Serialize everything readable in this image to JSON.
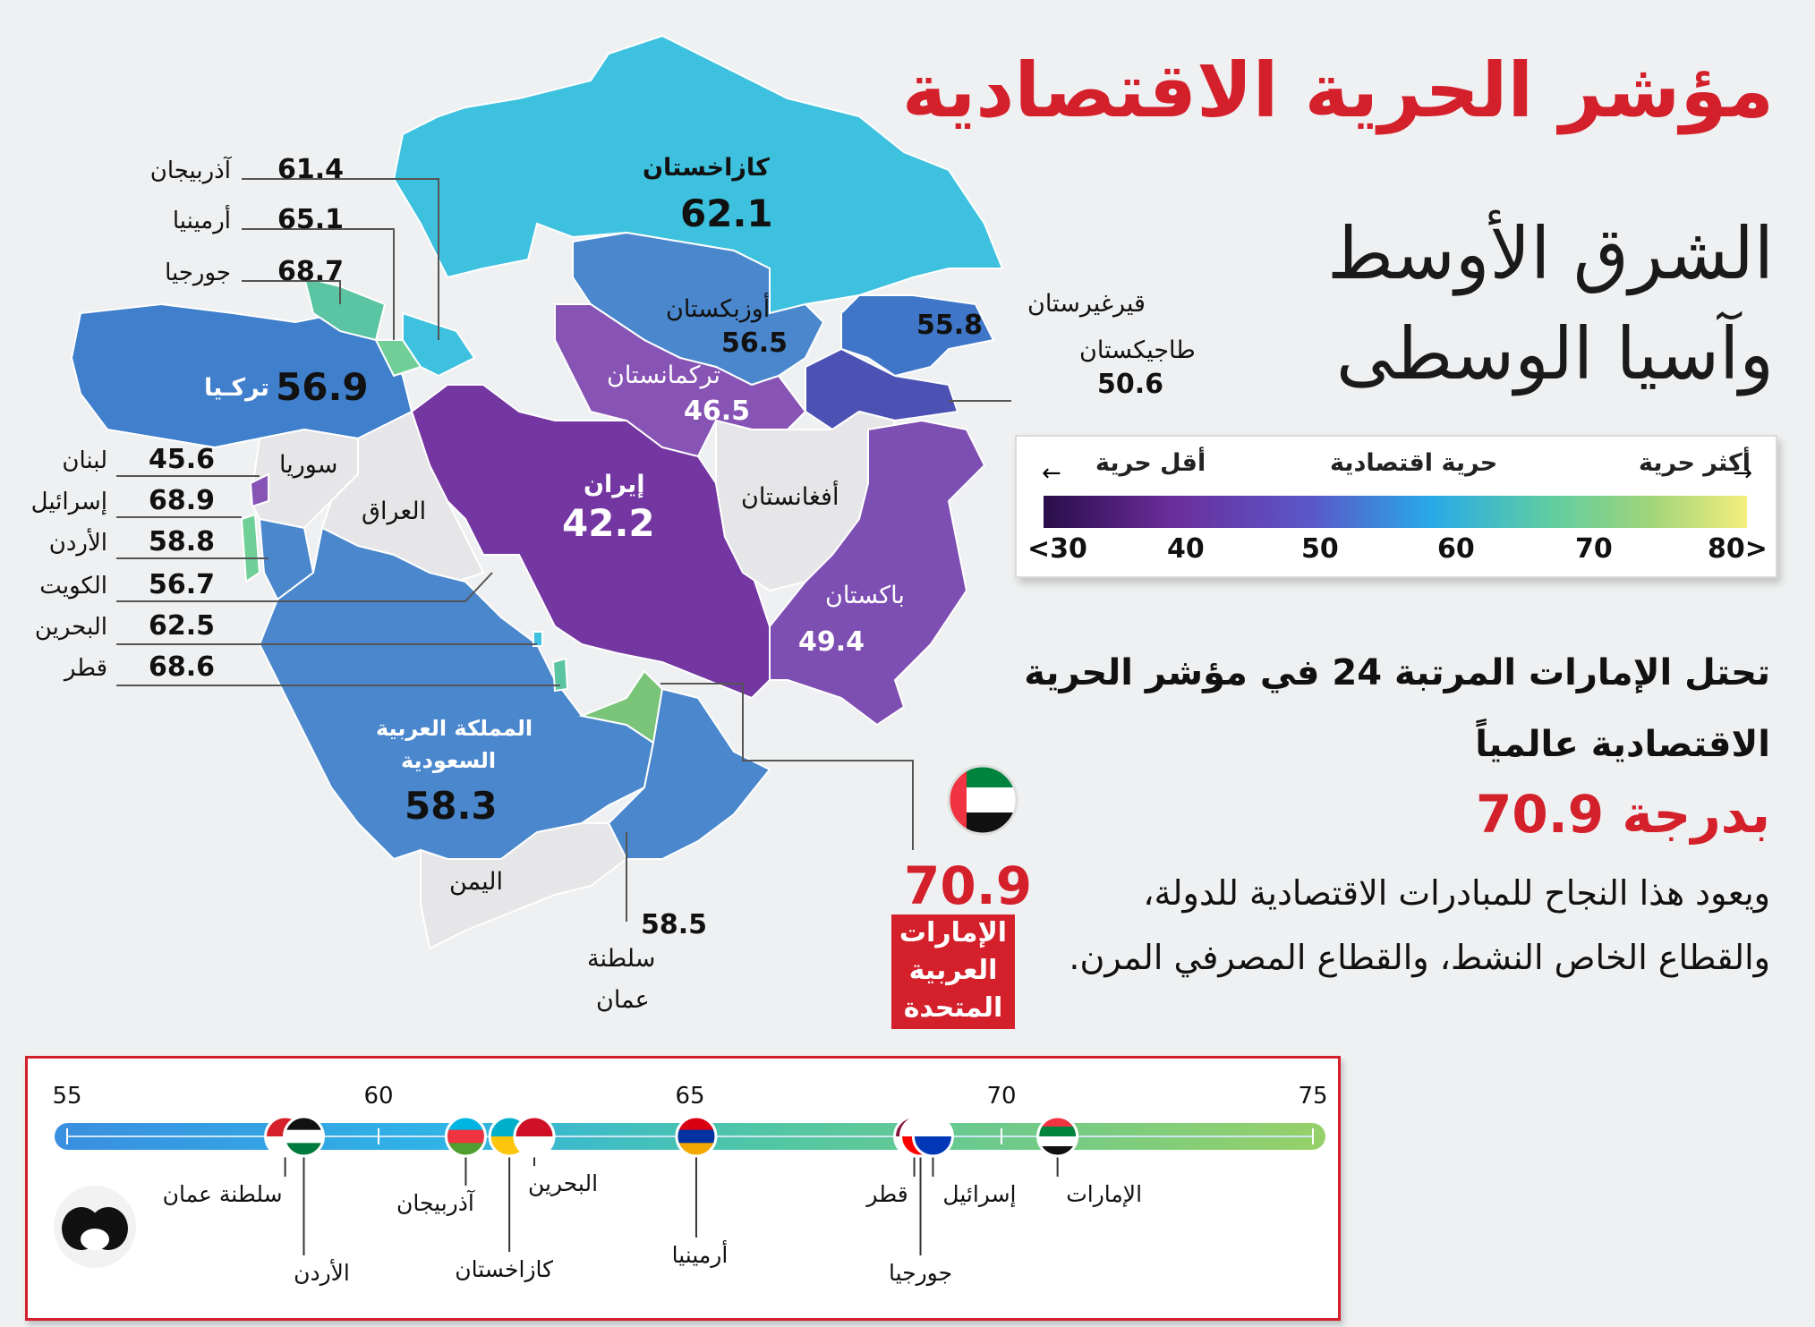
{
  "title": "مؤشر الحرية  الاقتصادية",
  "subtitle_line1": "الشرق الأوسط",
  "subtitle_line2": "وآسيا الوسطى",
  "legend": {
    "more_freedom": "أكثر حرية",
    "economic_freedom": "حرية اقتصادية",
    "less_freedom": "أقل حرية",
    "ticks": [
      "<30",
      "40",
      "50",
      "60",
      "70",
      "80>"
    ]
  },
  "headline": {
    "rank_line1": "تحتل الإمارات المرتبة 24 في مؤشر الحرية",
    "rank_line2": "الاقتصادية عالمياً",
    "score": "بدرجة 70.9",
    "reason_line1": "ويعود هذا النجاح للمبادرات الاقتصادية للدولة،",
    "reason_line2": "والقطاع الخاص النشط، والقطاع المصرفي المرن."
  },
  "map": {
    "kazakhstan": {
      "name": "كازاخستان",
      "value": "62.1"
    },
    "uzbekistan": {
      "name": "أوزبكستان",
      "value": "56.5"
    },
    "kyrgyzstan": {
      "name": "قيرغيرستان",
      "value": "55.8"
    },
    "tajikistan": {
      "name": "طاجيكستان",
      "value": "50.6"
    },
    "turkmenistan": {
      "name": "تركمانستان",
      "value": "46.5"
    },
    "turkey": {
      "name": "تركـيا",
      "value": "56.9"
    },
    "syria": {
      "name": "سوريا"
    },
    "iraq": {
      "name": "العراق"
    },
    "iran": {
      "name": "إيران",
      "value": "42.2"
    },
    "afghanistan": {
      "name": "أفغانستان"
    },
    "pakistan": {
      "name": "باكستان",
      "value": "49.4"
    },
    "saudi_l1": "المملكة العربية",
    "saudi_l2": "السعودية",
    "saudi_value": "58.3",
    "yemen": {
      "name": "اليمن"
    },
    "oman_value": "58.5",
    "oman_l1": "سلطنة",
    "oman_l2": "عمان",
    "uae_value": "70.9",
    "uae_l1": "الإمارات",
    "uae_l2": "العربية",
    "uae_l3": "المتحدة"
  },
  "side_list": [
    {
      "name": "آذربيجان",
      "value": "61.4"
    },
    {
      "name": "أرمينيا",
      "value": "65.1"
    },
    {
      "name": "جورجيا",
      "value": "68.7"
    },
    {
      "name": "لبنان",
      "value": "45.6"
    },
    {
      "name": "إسرائيل",
      "value": "68.9"
    },
    {
      "name": "الأردن",
      "value": "58.8"
    },
    {
      "name": "الكويت",
      "value": "56.7"
    },
    {
      "name": "البحرين",
      "value": "62.5"
    },
    {
      "name": "قطر",
      "value": "68.6"
    }
  ],
  "scale": {
    "ticks": [
      "55",
      "60",
      "65",
      "70",
      "75"
    ],
    "range": [
      55,
      75
    ],
    "items": [
      {
        "name": "سلطنة عمان",
        "value": 58.5,
        "colors": [
          "#d6202b",
          "#ffffff"
        ]
      },
      {
        "name": "الأردن",
        "value": 58.8,
        "colors": [
          "#111111",
          "#ffffff",
          "#007a3d"
        ]
      },
      {
        "name": "آذربيجان",
        "value": 61.4,
        "colors": [
          "#00b5e2",
          "#ef3340",
          "#509e2f"
        ]
      },
      {
        "name": "كازاخستان",
        "value": 62.1,
        "colors": [
          "#00afca",
          "#fec50c"
        ]
      },
      {
        "name": "البحرين",
        "value": 62.5,
        "colors": [
          "#ce1126",
          "#ffffff"
        ]
      },
      {
        "name": "أرمينيا",
        "value": 65.1,
        "colors": [
          "#d90012",
          "#0033a0",
          "#f2a800"
        ]
      },
      {
        "name": "قطر",
        "value": 68.6,
        "colors": [
          "#8a1538",
          "#ffffff"
        ]
      },
      {
        "name": "جورجيا",
        "value": 68.7,
        "colors": [
          "#ffffff",
          "#ff0000"
        ]
      },
      {
        "name": "إسرائيل",
        "value": 68.9,
        "colors": [
          "#ffffff",
          "#0038b8"
        ]
      },
      {
        "name": "الإمارات",
        "value": 70.9,
        "colors": [
          "#ef3340",
          "#00843d",
          "#ffffff",
          "#111111"
        ]
      }
    ]
  },
  "colors": {
    "accent_red": "#d4202b"
  }
}
